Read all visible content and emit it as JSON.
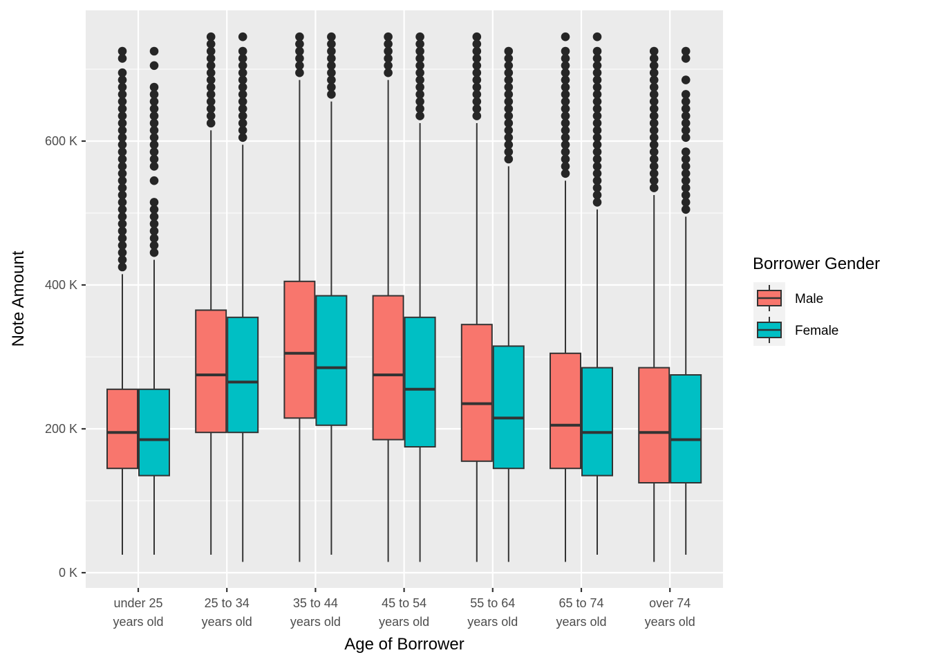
{
  "chart_data": {
    "type": "boxplot",
    "title": "",
    "xlabel": "Age of Borrower",
    "ylabel": "Note Amount",
    "ylim": [
      -40,
      800
    ],
    "y_ticks": [
      0,
      200,
      400,
      600
    ],
    "y_tick_labels": [
      "0 K",
      "200 K",
      "400 K",
      "600 K"
    ],
    "y_minor_ticks": [
      100,
      300,
      500,
      700
    ],
    "y_unit": "thousands",
    "grid": true,
    "categories": [
      {
        "line1": "under 25",
        "line2": "years old"
      },
      {
        "line1": "25 to 34",
        "line2": "years old"
      },
      {
        "line1": "35 to 44",
        "line2": "years old"
      },
      {
        "line1": "45 to 54",
        "line2": "years old"
      },
      {
        "line1": "55 to 64",
        "line2": "years old"
      },
      {
        "line1": "65 to 74",
        "line2": "years old"
      },
      {
        "line1": "over 74",
        "line2": "years old"
      }
    ],
    "legend": {
      "title": "Borrower Gender",
      "position": "right"
    },
    "series": [
      {
        "name": "Male",
        "color": "#F8766D",
        "boxes": [
          {
            "lower": 25,
            "q1": 145,
            "median": 195,
            "q3": 255,
            "upper": 415,
            "outliers": [
              425,
              435,
              445,
              455,
              465,
              475,
              485,
              495,
              505,
              515,
              525,
              535,
              545,
              555,
              565,
              575,
              585,
              595,
              605,
              615,
              625,
              635,
              645,
              655,
              665,
              675,
              685,
              695,
              715,
              725
            ]
          },
          {
            "lower": 25,
            "q1": 195,
            "median": 275,
            "q3": 365,
            "upper": 615,
            "outliers": [
              625,
              635,
              645,
              655,
              665,
              675,
              685,
              695,
              705,
              715,
              725,
              735,
              745
            ]
          },
          {
            "lower": 15,
            "q1": 215,
            "median": 305,
            "q3": 405,
            "upper": 685,
            "outliers": [
              695,
              705,
              715,
              725,
              735,
              745
            ]
          },
          {
            "lower": 15,
            "q1": 185,
            "median": 275,
            "q3": 385,
            "upper": 685,
            "outliers": [
              695,
              705,
              715,
              725,
              735,
              745
            ]
          },
          {
            "lower": 15,
            "q1": 155,
            "median": 235,
            "q3": 345,
            "upper": 625,
            "outliers": [
              635,
              645,
              655,
              665,
              675,
              685,
              695,
              705,
              715,
              725,
              735,
              745
            ]
          },
          {
            "lower": 15,
            "q1": 145,
            "median": 205,
            "q3": 305,
            "upper": 545,
            "outliers": [
              555,
              565,
              575,
              585,
              595,
              605,
              615,
              625,
              635,
              645,
              655,
              665,
              675,
              685,
              695,
              705,
              715,
              725,
              745
            ]
          },
          {
            "lower": 15,
            "q1": 125,
            "median": 195,
            "q3": 285,
            "upper": 525,
            "outliers": [
              535,
              545,
              555,
              565,
              575,
              585,
              595,
              605,
              615,
              625,
              635,
              645,
              655,
              665,
              675,
              685,
              695,
              705,
              715,
              725
            ]
          }
        ]
      },
      {
        "name": "Female",
        "color": "#00BFC4",
        "boxes": [
          {
            "lower": 25,
            "q1": 135,
            "median": 185,
            "q3": 255,
            "upper": 435,
            "outliers": [
              445,
              455,
              465,
              475,
              485,
              495,
              505,
              515,
              545,
              565,
              575,
              585,
              595,
              605,
              615,
              625,
              635,
              645,
              655,
              665,
              675,
              705,
              725
            ]
          },
          {
            "lower": 15,
            "q1": 195,
            "median": 265,
            "q3": 355,
            "upper": 595,
            "outliers": [
              605,
              615,
              625,
              635,
              645,
              655,
              665,
              675,
              685,
              695,
              705,
              715,
              725,
              745
            ]
          },
          {
            "lower": 25,
            "q1": 205,
            "median": 285,
            "q3": 385,
            "upper": 655,
            "outliers": [
              665,
              675,
              685,
              695,
              705,
              715,
              725,
              735,
              745
            ]
          },
          {
            "lower": 15,
            "q1": 175,
            "median": 255,
            "q3": 355,
            "upper": 625,
            "outliers": [
              635,
              645,
              655,
              665,
              675,
              685,
              695,
              705,
              715,
              725,
              735,
              745
            ]
          },
          {
            "lower": 15,
            "q1": 145,
            "median": 215,
            "q3": 315,
            "upper": 565,
            "outliers": [
              575,
              585,
              595,
              605,
              615,
              625,
              635,
              645,
              655,
              665,
              675,
              685,
              695,
              705,
              715,
              725
            ]
          },
          {
            "lower": 25,
            "q1": 135,
            "median": 195,
            "q3": 285,
            "upper": 505,
            "outliers": [
              515,
              525,
              535,
              545,
              555,
              565,
              575,
              585,
              595,
              605,
              615,
              625,
              635,
              645,
              655,
              665,
              675,
              685,
              695,
              705,
              715,
              725,
              745
            ]
          },
          {
            "lower": 25,
            "q1": 125,
            "median": 185,
            "q3": 275,
            "upper": 495,
            "outliers": [
              505,
              515,
              525,
              535,
              545,
              555,
              565,
              575,
              585,
              605,
              615,
              625,
              635,
              645,
              655,
              665,
              685,
              715,
              725
            ]
          }
        ]
      }
    ]
  }
}
